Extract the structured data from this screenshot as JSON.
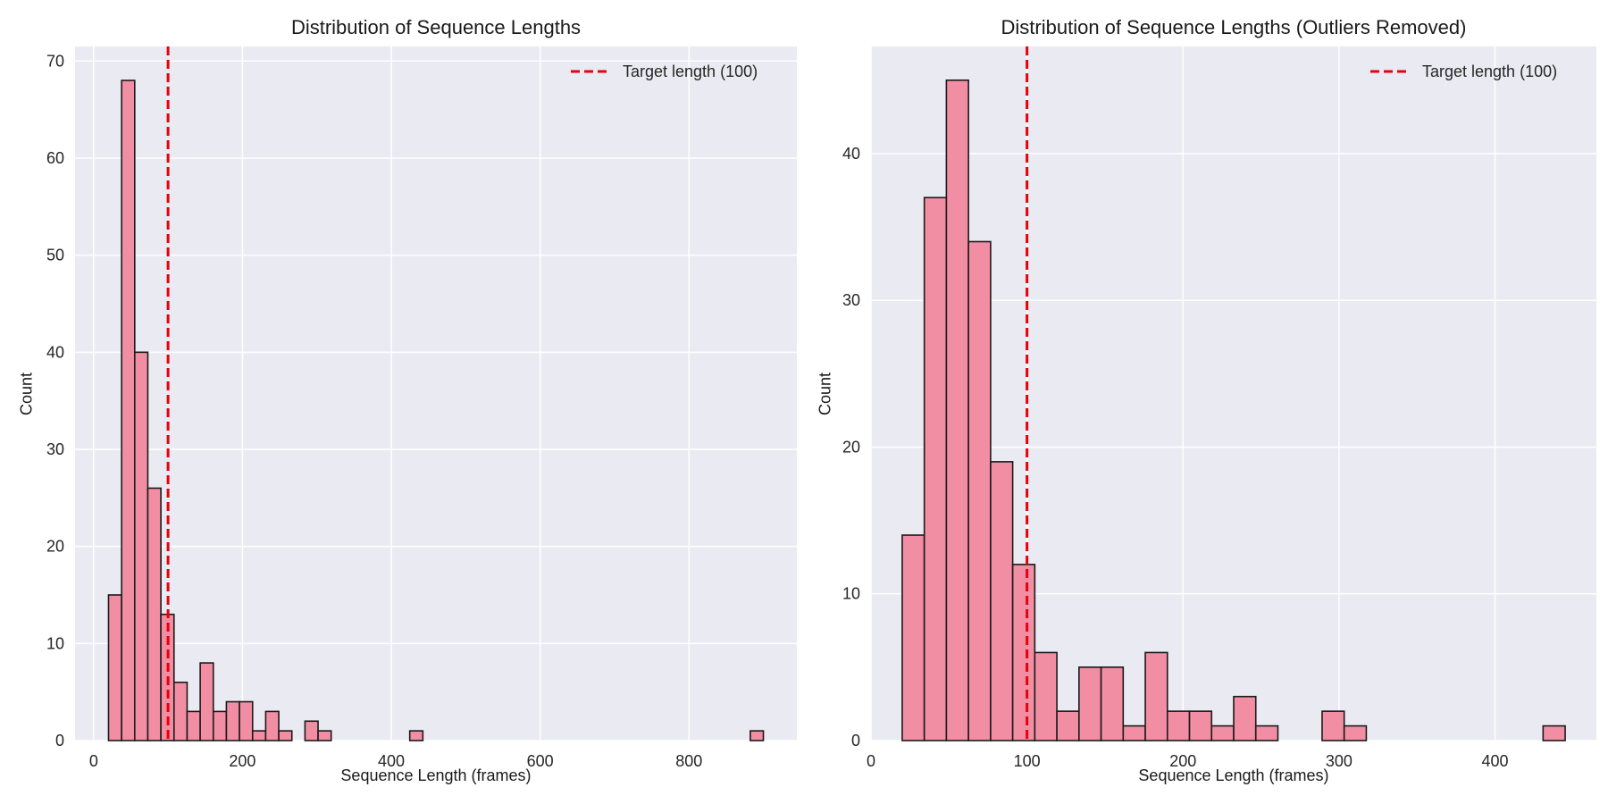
{
  "chart_data": [
    {
      "type": "bar",
      "title": "Distribution of Sequence Lengths",
      "xlabel": "Sequence Length (frames)",
      "ylabel": "Count",
      "xlim": [
        -25,
        945
      ],
      "ylim": [
        0,
        71.5
      ],
      "xticks": [
        0,
        200,
        400,
        600,
        800
      ],
      "yticks": [
        0,
        10,
        20,
        30,
        40,
        50,
        60,
        70
      ],
      "grid": true,
      "legend_position": "top-right",
      "bin_edges": [
        20,
        37.6,
        55.2,
        72.8,
        90.4,
        108,
        125.6,
        143.2,
        160.8,
        178.4,
        196,
        213.6,
        231.2,
        248.8,
        266.4,
        284,
        301.6,
        319.2,
        336.8,
        354.4,
        372,
        389.6,
        407.2,
        424.8,
        442.4,
        460,
        477.6,
        495.2,
        512.8,
        530.4,
        548,
        565.6,
        583.2,
        600.8,
        618.4,
        636,
        653.6,
        671.2,
        688.8,
        706.4,
        724,
        741.6,
        759.2,
        776.8,
        794.4,
        812,
        829.6,
        847.2,
        864.8,
        882.4,
        900
      ],
      "counts": [
        15,
        68,
        40,
        26,
        13,
        6,
        3,
        8,
        3,
        4,
        4,
        1,
        3,
        1,
        0,
        2,
        1,
        0,
        0,
        0,
        0,
        0,
        0,
        1,
        0,
        0,
        0,
        0,
        0,
        0,
        0,
        0,
        0,
        0,
        0,
        0,
        0,
        0,
        0,
        0,
        0,
        0,
        0,
        0,
        0,
        0,
        0,
        0,
        0,
        1
      ],
      "reference_line": {
        "x": 100,
        "label": "Target length (100)",
        "color": "#e8000b",
        "style": "dashed"
      },
      "bar_color": "#f28ea3",
      "edge_color": "#1a1a1a"
    },
    {
      "type": "bar",
      "title": "Distribution of Sequence Lengths (Outliers Removed)",
      "xlabel": "Sequence Length (frames)",
      "ylabel": "Count",
      "xlim": [
        0,
        465
      ],
      "ylim": [
        0,
        47.3
      ],
      "xticks": [
        0,
        100,
        200,
        300,
        400
      ],
      "yticks": [
        0,
        10,
        20,
        30,
        40
      ],
      "grid": true,
      "legend_position": "top-right",
      "bin_edges": [
        20,
        34.17,
        48.33,
        62.5,
        76.67,
        90.83,
        105,
        119.17,
        133.33,
        147.5,
        161.67,
        175.83,
        190,
        204.17,
        218.33,
        232.5,
        246.67,
        260.83,
        275,
        289.17,
        303.33,
        317.5,
        331.67,
        345.83,
        360,
        374.17,
        388.33,
        402.5,
        416.67,
        430.83,
        445
      ],
      "counts": [
        14,
        37,
        45,
        34,
        19,
        12,
        6,
        2,
        5,
        5,
        1,
        6,
        2,
        2,
        1,
        3,
        1,
        0,
        0,
        2,
        1,
        0,
        0,
        0,
        0,
        0,
        0,
        0,
        0,
        1
      ],
      "reference_line": {
        "x": 100,
        "label": "Target length (100)",
        "color": "#e8000b",
        "style": "dashed"
      },
      "bar_color": "#f28ea3",
      "edge_color": "#1a1a1a"
    }
  ]
}
